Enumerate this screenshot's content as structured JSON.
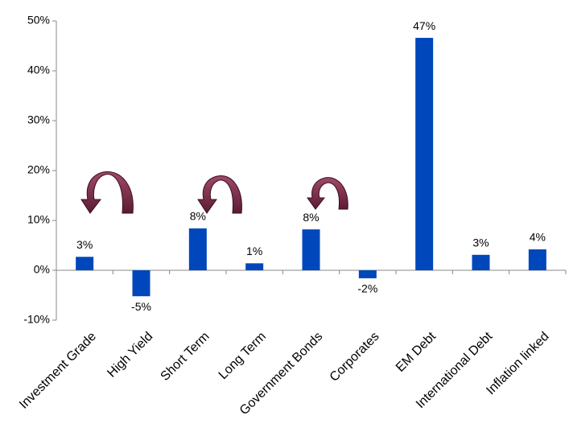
{
  "chart_data": {
    "type": "bar",
    "categories": [
      "Investment Grade",
      "High Yield",
      "Short Term",
      "Long Term",
      "Government Bonds",
      "Corporates",
      "EM Debt",
      "International Debt",
      "Inflation linked"
    ],
    "values": [
      2.7,
      -5.2,
      8.4,
      1.4,
      8.2,
      -1.6,
      46.6,
      3.1,
      4.2
    ],
    "value_labels": [
      "3%",
      "-5%",
      "8%",
      "1%",
      "8%",
      "-2%",
      "47%",
      "3%",
      "4%"
    ],
    "color": "#0047bb",
    "ylim": [
      -10,
      50
    ],
    "yticks": [
      {
        "value": -10,
        "label": "-10%"
      },
      {
        "value": 0,
        "label": "0%"
      },
      {
        "value": 10,
        "label": "10%"
      },
      {
        "value": 20,
        "label": "20%"
      },
      {
        "value": 30,
        "label": "30%"
      },
      {
        "value": 40,
        "label": "40%"
      },
      {
        "value": 50,
        "label": "50%"
      }
    ],
    "grid": false
  }
}
